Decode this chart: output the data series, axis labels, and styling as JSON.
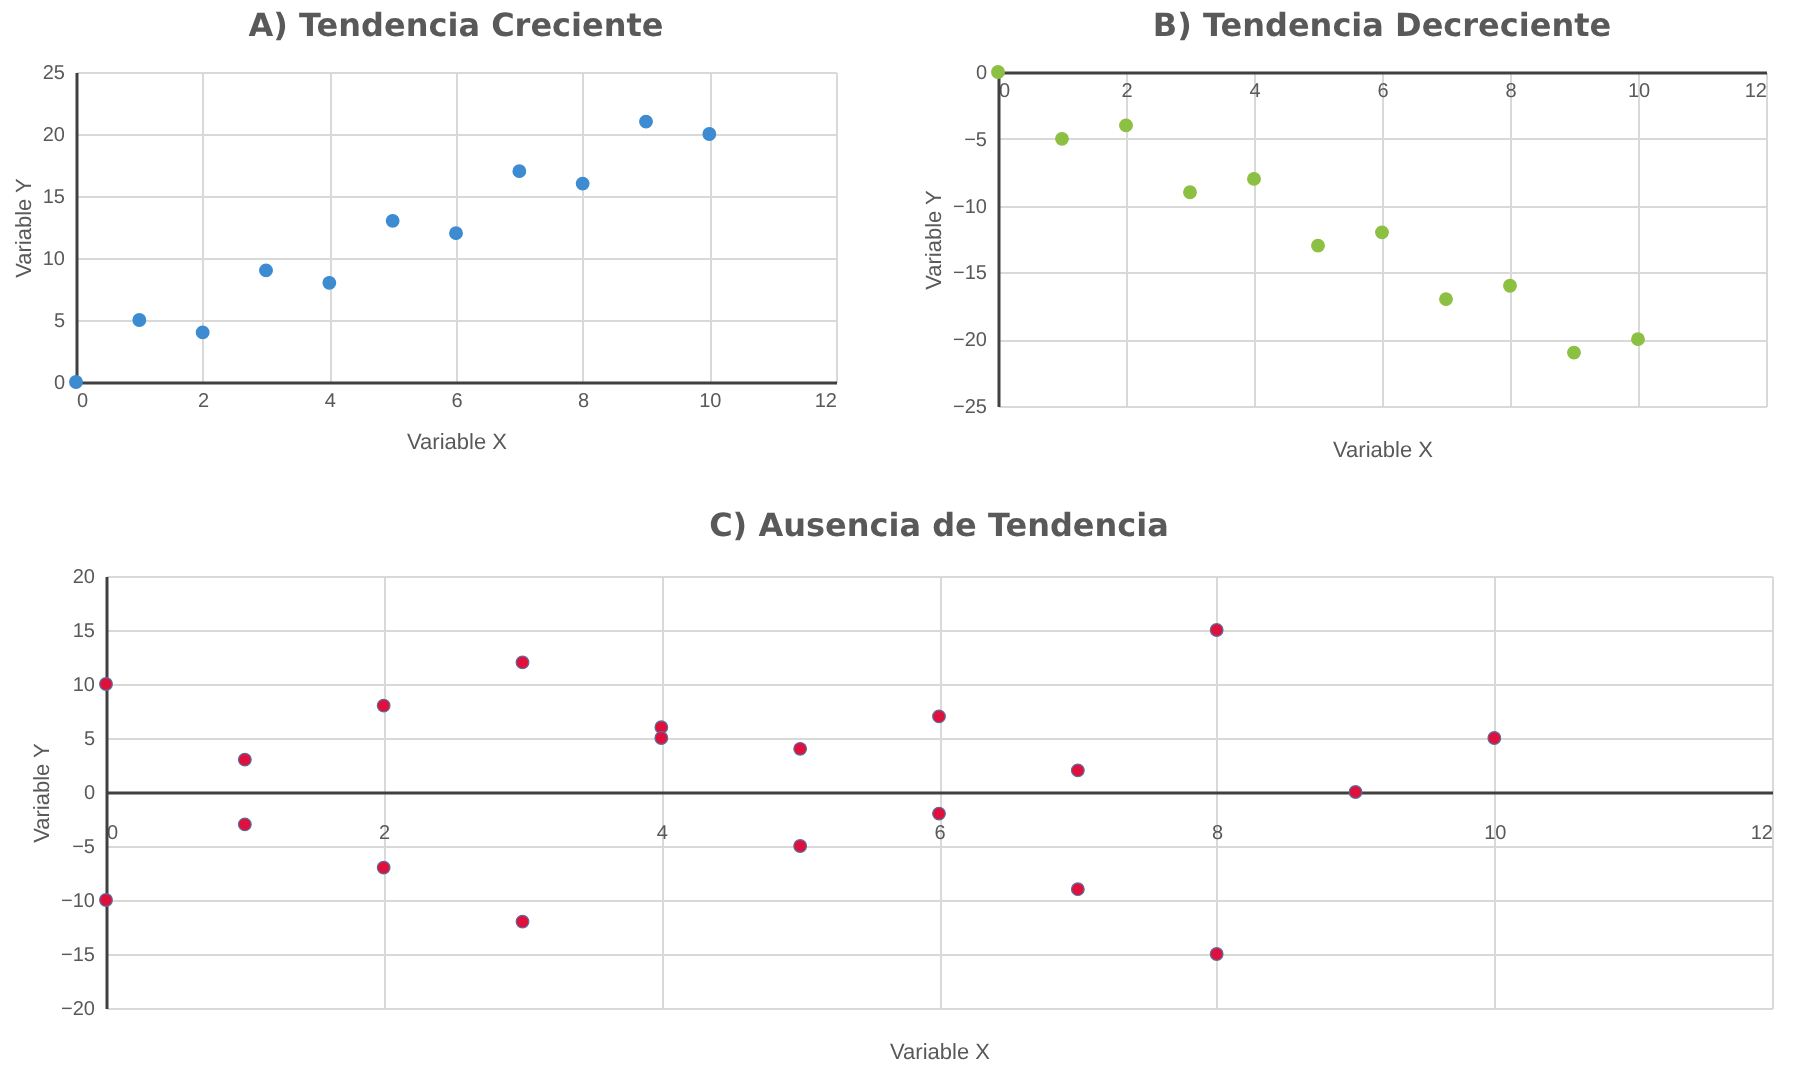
{
  "chart_data": [
    {
      "type": "scatter",
      "title": "A) Tendencia Creciente",
      "xlabel": "Variable X",
      "ylabel": "Variable Y",
      "xlim": [
        0,
        12
      ],
      "xticks": [
        0,
        2,
        4,
        6,
        8,
        10,
        12
      ],
      "ylim": [
        0,
        25
      ],
      "yticks": [
        0,
        5,
        10,
        15,
        20,
        25
      ],
      "grid": true,
      "marker": "circle",
      "x": [
        0,
        1,
        2,
        3,
        4,
        5,
        6,
        7,
        8,
        9,
        10
      ],
      "series": [
        {
          "color": "#3d8bd0",
          "values": [
            0,
            5,
            4,
            9,
            8,
            13,
            12,
            17,
            16,
            21,
            20
          ]
        }
      ]
    },
    {
      "type": "scatter",
      "title": "B) Tendencia Decreciente",
      "xlabel": "Variable X",
      "ylabel": "Variable Y",
      "xlim": [
        0,
        12
      ],
      "xticks": [
        0,
        2,
        4,
        6,
        8,
        10,
        12
      ],
      "ylim": [
        -25,
        0
      ],
      "yticks": [
        -25,
        -20,
        -15,
        -10,
        -5,
        0
      ],
      "grid": true,
      "marker": "circle",
      "x": [
        0,
        1,
        2,
        3,
        4,
        5,
        6,
        7,
        8,
        9,
        10
      ],
      "series": [
        {
          "color": "#8cc043",
          "values": [
            0,
            -5,
            -4,
            -9,
            -8,
            -13,
            -12,
            -17,
            -16,
            -21,
            -20
          ]
        }
      ]
    },
    {
      "type": "scatter",
      "title": "C) Ausencia de Tendencia",
      "xlabel": "Variable X",
      "ylabel": "Variable Y",
      "xlim": [
        0,
        12
      ],
      "xticks": [
        0,
        2,
        4,
        6,
        8,
        10,
        12
      ],
      "ylim": [
        -20,
        20
      ],
      "yticks": [
        -20,
        -15,
        -10,
        -5,
        0,
        5,
        10,
        15,
        20
      ],
      "grid": true,
      "marker": "circle",
      "x": [
        0,
        0,
        1,
        1,
        2,
        2,
        3,
        3,
        4,
        4,
        5,
        5,
        6,
        6,
        7,
        7,
        8,
        8,
        9,
        10
      ],
      "series": [
        {
          "color": "#e0103c",
          "values": [
            10,
            -10,
            3,
            -3,
            8,
            -7,
            12,
            -12,
            6,
            5,
            4,
            -5,
            7,
            -2,
            2,
            -9,
            15,
            -15,
            0,
            5
          ]
        }
      ]
    }
  ]
}
